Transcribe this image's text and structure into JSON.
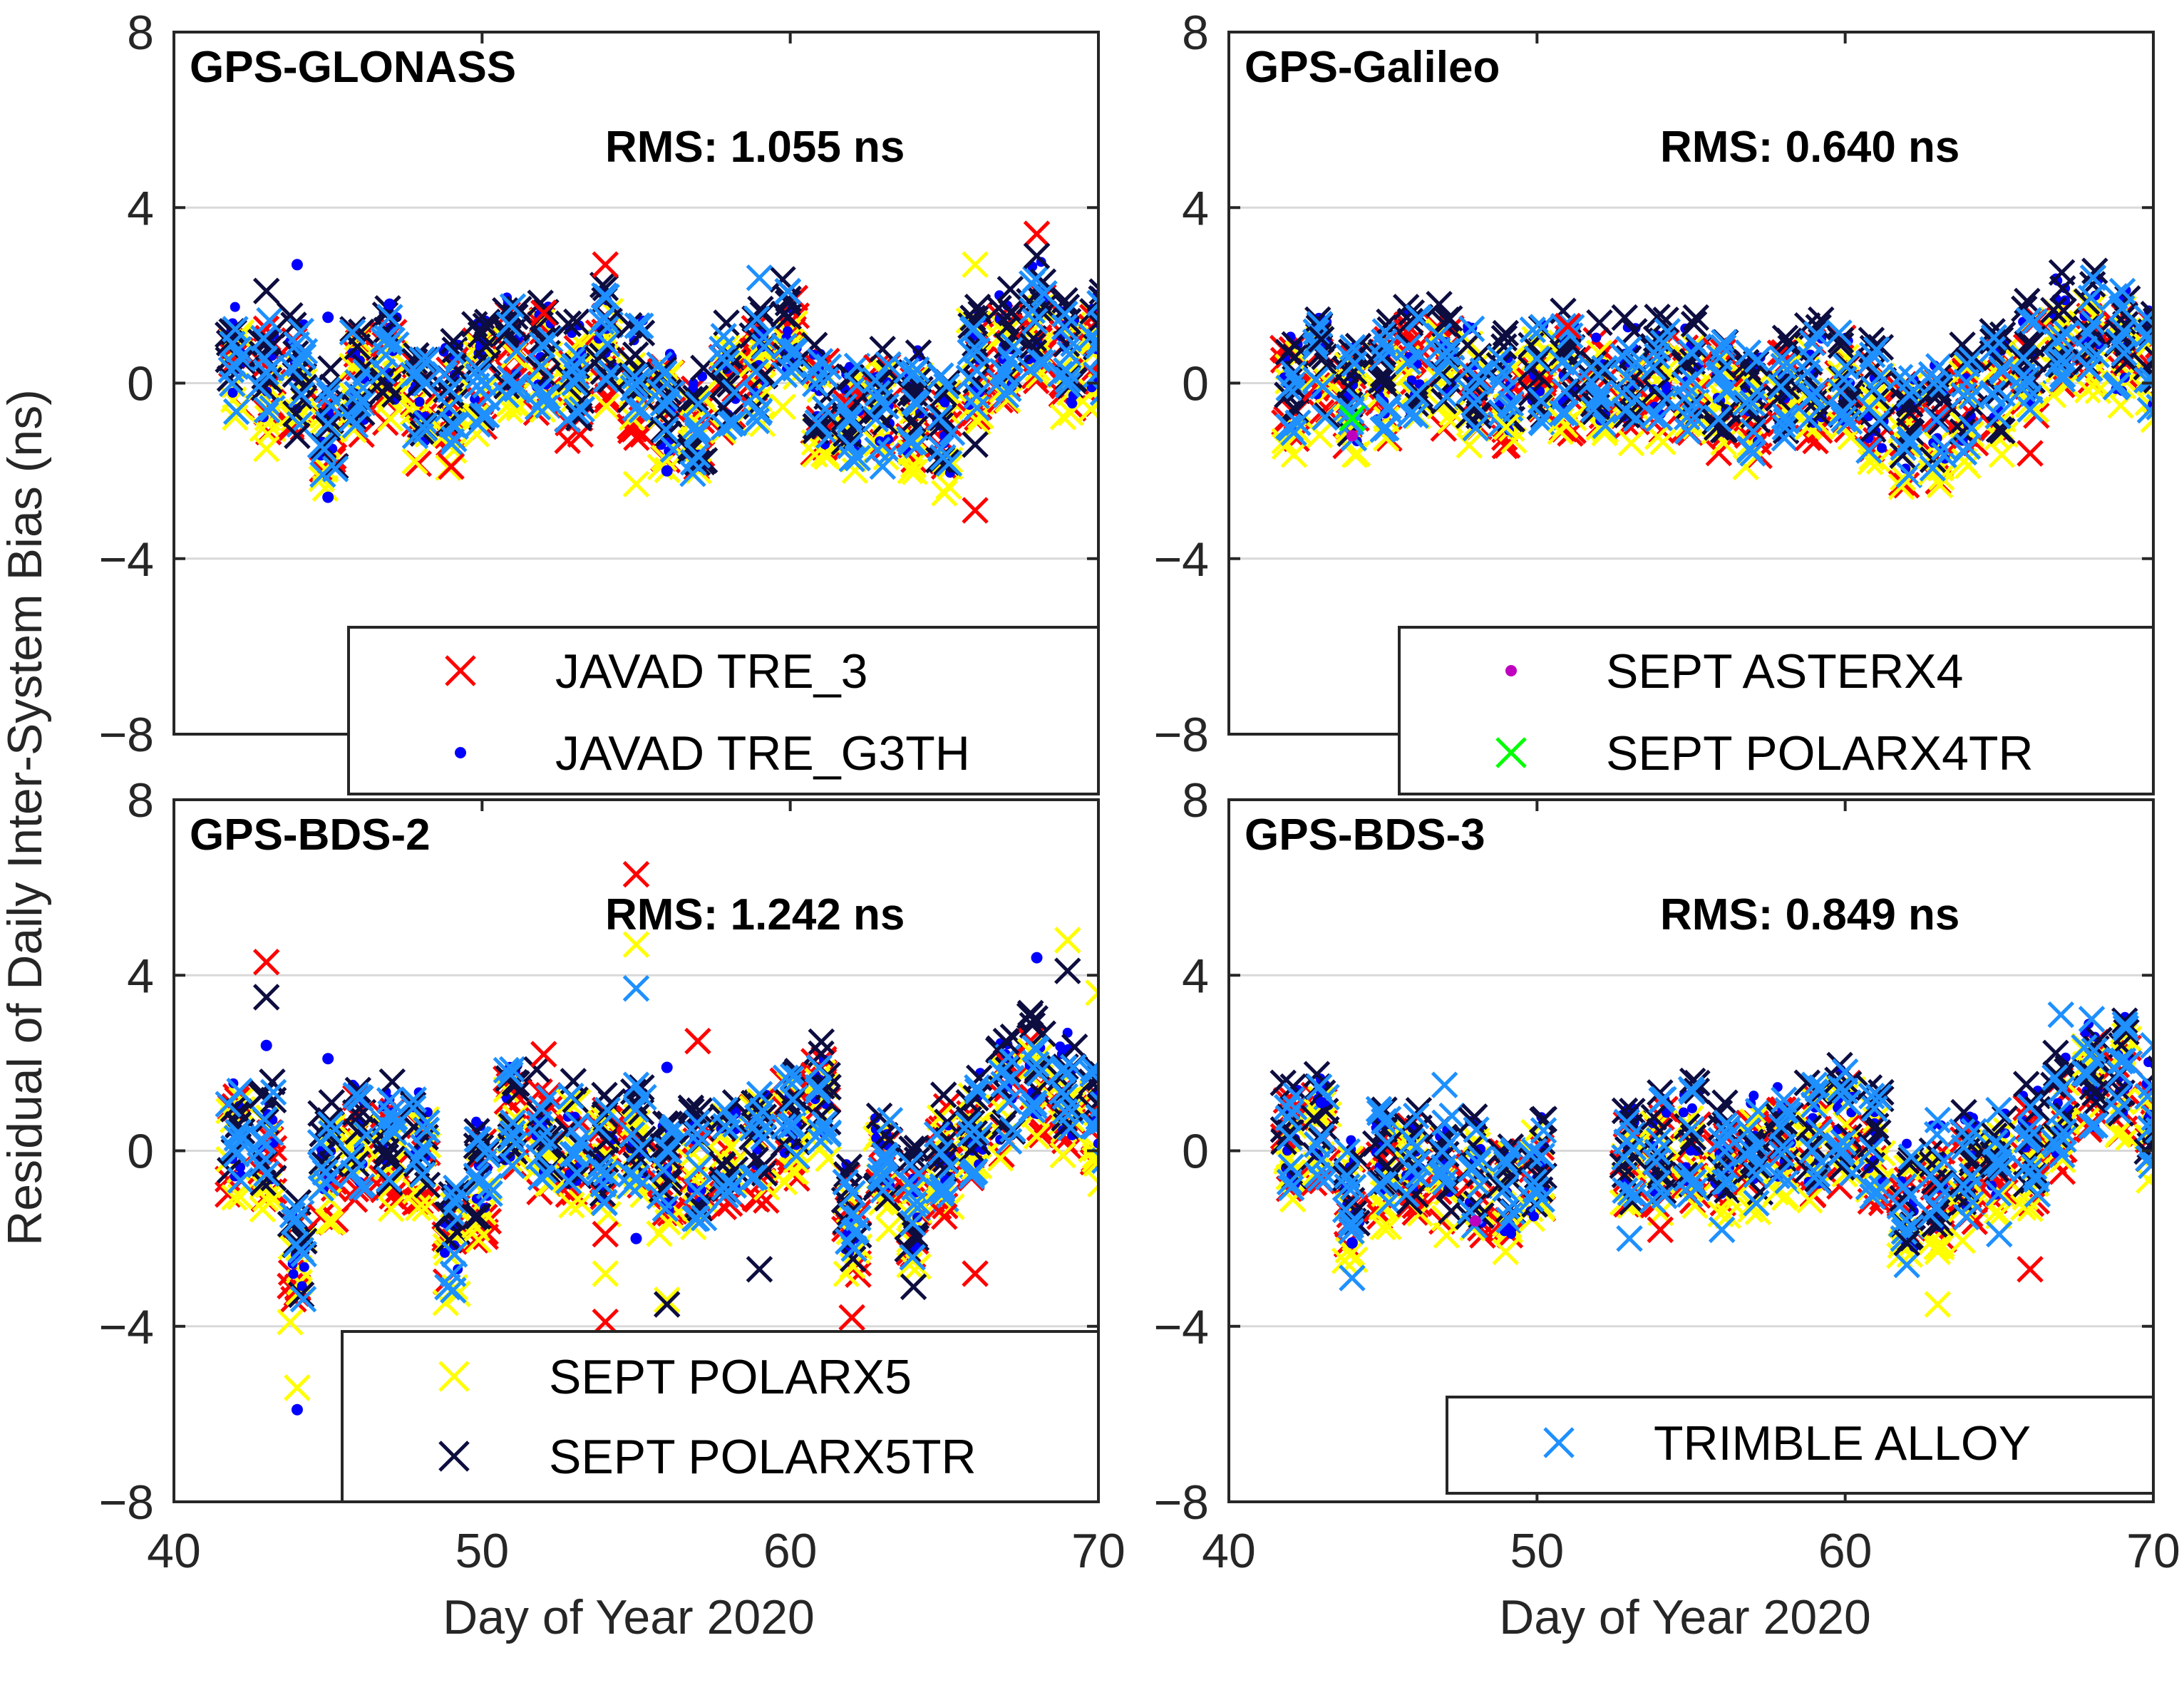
{
  "figure": {
    "ylabel": "Residual of Daily Inter-System Bias (ns)",
    "xlabel": "Day of Year 2020"
  },
  "colors": {
    "javad_tre3": "#ff0000",
    "javad_g3th": "#0000ff",
    "asterx4": "#bf00bf",
    "polarx4tr": "#00ff00",
    "polarx5": "#ffff00",
    "polarx5tr": "#0d0d40",
    "trimble_alloy": "#1e90ff",
    "grid": "#d9d9d9"
  },
  "chart_data": [
    {
      "type": "scatter",
      "title": "GPS-GLONASS",
      "rms": "RMS: 1.055 ns",
      "xlim": [
        40,
        70
      ],
      "ylim": [
        -8,
        8
      ],
      "xticks": [
        "40",
        "50",
        "60",
        "70"
      ],
      "yticks": [
        "8",
        "4",
        "0",
        "−4",
        "−8"
      ],
      "xtick_values": [
        40,
        50,
        60,
        70
      ],
      "ytick_values": [
        8,
        4,
        0,
        -4,
        -8
      ],
      "legend": [
        {
          "label": "JAVAD TRE_3",
          "marker": "x",
          "color": "#ff0000"
        },
        {
          "label": "JAVAD TRE_G3TH",
          "marker": "dot",
          "color": "#0000ff"
        }
      ],
      "days": [
        42,
        43,
        44,
        45,
        46,
        47,
        48,
        49,
        50,
        51,
        52,
        53,
        54,
        55,
        56,
        57,
        58,
        59,
        60,
        61,
        62,
        63,
        64,
        65,
        66,
        67,
        68,
        69,
        70
      ],
      "centers": [
        0.5,
        0.3,
        0.2,
        -1.0,
        0.2,
        0.4,
        -0.4,
        -0.4,
        0.2,
        0.9,
        0.6,
        0.1,
        1.0,
        0.2,
        -0.5,
        -0.9,
        0.0,
        0.3,
        1.0,
        -0.4,
        -0.6,
        -0.5,
        -0.5,
        -1.0,
        0.6,
        0.8,
        1.5,
        0.6,
        0.8
      ],
      "series": [
        {
          "name": "JAVAD TRE_3",
          "marker": "x",
          "color": "#ff0000",
          "outliers": [
            [
              66,
              -2.9
            ],
            [
              68,
              3.4
            ],
            [
              54,
              2.7
            ],
            [
              52,
              1.6
            ],
            [
              49,
              -1.9
            ]
          ]
        },
        {
          "name": "JAVAD TRE_G3TH",
          "marker": "dot",
          "color": "#0000ff",
          "outliers": [
            [
              44,
              2.7
            ],
            [
              45,
              -2.6
            ],
            [
              45,
              1.5
            ],
            [
              47,
              1.8
            ],
            [
              56,
              -2.0
            ]
          ]
        },
        {
          "name": "SEPT POLARX5",
          "marker": "x",
          "color": "#ffff00",
          "outliers": [
            [
              43,
              -1.5
            ],
            [
              66,
              2.7
            ],
            [
              55,
              -2.3
            ]
          ]
        },
        {
          "name": "SEPT POLARX5TR",
          "marker": "x",
          "color": "#0d0d40",
          "outliers": [
            [
              43,
              2.1
            ],
            [
              44,
              -1.2
            ],
            [
              66,
              -1.4
            ],
            [
              68,
              2.9
            ]
          ]
        },
        {
          "name": "TRIMBLE ALLOY",
          "marker": "x",
          "color": "#1e90ff",
          "outliers": [
            [
              59,
              2.4
            ],
            [
              63,
              -1.9
            ]
          ]
        }
      ]
    },
    {
      "type": "scatter",
      "title": "GPS-Galileo",
      "rms": "RMS: 0.640 ns",
      "xlim": [
        40,
        70
      ],
      "ylim": [
        -8,
        8
      ],
      "xticks": [
        "40",
        "50",
        "60",
        "70"
      ],
      "yticks": [
        "8",
        "4",
        "0",
        "−4",
        "−8"
      ],
      "xtick_values": [
        40,
        50,
        60,
        70
      ],
      "ytick_values": [
        8,
        4,
        0,
        -4,
        -8
      ],
      "legend": [
        {
          "label": "SEPT ASTERX4",
          "marker": "dot",
          "color": "#bf00bf"
        },
        {
          "label": "SEPT POLARX4TR",
          "marker": "x",
          "color": "#00ff00"
        }
      ],
      "days": [
        42,
        43,
        44,
        45,
        46,
        47,
        48,
        49,
        50,
        51,
        52,
        53,
        54,
        55,
        56,
        57,
        58,
        59,
        60,
        61,
        62,
        63,
        64,
        65,
        66,
        67,
        68,
        69,
        70
      ],
      "centers": [
        -0.1,
        0.2,
        -0.3,
        0.1,
        0.4,
        0.4,
        0.1,
        -0.2,
        0.2,
        0.3,
        0.1,
        0.1,
        0.2,
        0.1,
        -0.2,
        -0.5,
        -0.2,
        0.1,
        0.2,
        -0.4,
        -0.9,
        -0.8,
        -0.4,
        -0.1,
        0.6,
        1.2,
        1.3,
        0.9,
        0.5
      ],
      "series": [
        {
          "name": "SEPT ASTERX4",
          "marker": "dot",
          "color": "#bf00bf",
          "outliers": [
            [
              44,
              -1.2
            ]
          ]
        },
        {
          "name": "SEPT POLARX4TR",
          "marker": "x",
          "color": "#00ff00",
          "outliers": [
            [
              44,
              -0.8
            ]
          ]
        },
        {
          "name": "JAVAD TRE_3",
          "marker": "x",
          "color": "#ff0000",
          "outliers": [
            [
              66,
              -1.6
            ],
            [
              51,
              1.3
            ]
          ]
        },
        {
          "name": "SEPT POLARX5",
          "marker": "x",
          "color": "#ffff00",
          "outliers": [
            [
              49,
              -1.0
            ]
          ]
        },
        {
          "name": "SEPT POLARX5TR",
          "marker": "x",
          "color": "#0d0d40",
          "outliers": [
            [
              43,
              1.0
            ]
          ]
        },
        {
          "name": "TRIMBLE ALLOY",
          "marker": "x",
          "color": "#1e90ff",
          "outliers": [
            [
              55,
              0.7
            ],
            [
              57,
              -1.6
            ]
          ]
        }
      ]
    },
    {
      "type": "scatter",
      "title": "GPS-BDS-2",
      "rms": "RMS: 1.242 ns",
      "xlim": [
        40,
        70
      ],
      "ylim": [
        -8,
        8
      ],
      "xticks": [
        "40",
        "50",
        "60",
        "70"
      ],
      "yticks": [
        "8",
        "4",
        "0",
        "−4",
        "−8"
      ],
      "xtick_values": [
        40,
        50,
        60,
        70
      ],
      "ytick_values": [
        8,
        4,
        0,
        -4,
        -8
      ],
      "legend": [
        {
          "label": "SEPT POLARX5",
          "marker": "x",
          "color": "#ffff00"
        },
        {
          "label": "SEPT POLARX5TR",
          "marker": "x",
          "color": "#0d0d40"
        }
      ],
      "days": [
        42,
        43,
        44,
        45,
        46,
        47,
        48,
        49,
        50,
        51,
        52,
        53,
        54,
        55,
        56,
        57,
        58,
        59,
        60,
        61,
        62,
        63,
        64,
        65,
        66,
        67,
        68,
        69,
        70
      ],
      "centers": [
        0.4,
        0.2,
        -2.4,
        -0.2,
        0.3,
        0.2,
        0.2,
        -2.0,
        -0.6,
        0.7,
        0.5,
        0.3,
        0.0,
        0.2,
        -0.6,
        -0.4,
        0.1,
        0.3,
        0.8,
        1.3,
        -1.5,
        -0.3,
        -1.3,
        0.1,
        0.6,
        1.3,
        1.8,
        1.4,
        0.7
      ],
      "series": [
        {
          "name": "JAVAD TRE_3",
          "marker": "x",
          "color": "#ff0000",
          "outliers": [
            [
              43,
              4.3
            ],
            [
              55,
              6.3
            ],
            [
              57,
              2.5
            ],
            [
              52,
              2.2
            ],
            [
              54,
              -1.9
            ],
            [
              54,
              -3.9
            ],
            [
              62,
              -3.8
            ],
            [
              66,
              -2.8
            ],
            [
              65,
              -1.5
            ]
          ]
        },
        {
          "name": "JAVAD TRE_G3TH",
          "marker": "dot",
          "color": "#0000ff",
          "outliers": [
            [
              43,
              2.4
            ],
            [
              44,
              -5.9
            ],
            [
              45,
              2.1
            ],
            [
              55,
              -2.0
            ],
            [
              56,
              1.9
            ],
            [
              68,
              4.4
            ]
          ]
        },
        {
          "name": "SEPT POLARX5",
          "marker": "x",
          "color": "#ffff00",
          "outliers": [
            [
              44,
              -5.4
            ],
            [
              54,
              -2.8
            ],
            [
              55,
              4.7
            ],
            [
              56,
              -3.4
            ],
            [
              69,
              4.8
            ],
            [
              70,
              3.6
            ]
          ]
        },
        {
          "name": "SEPT POLARX5TR",
          "marker": "x",
          "color": "#0d0d40",
          "outliers": [
            [
              43,
              3.5
            ],
            [
              56,
              -3.5
            ],
            [
              59,
              -2.7
            ],
            [
              64,
              -3.1
            ],
            [
              69,
              4.1
            ],
            [
              67,
              2.5
            ]
          ]
        },
        {
          "name": "TRIMBLE ALLOY",
          "marker": "x",
          "color": "#1e90ff",
          "outliers": [
            [
              55,
              3.7
            ],
            [
              55,
              1.5
            ]
          ]
        }
      ]
    },
    {
      "type": "scatter",
      "title": "GPS-BDS-3",
      "rms": "RMS: 0.849 ns",
      "xlim": [
        40,
        70
      ],
      "ylim": [
        -8,
        8
      ],
      "xticks": [
        "40",
        "50",
        "60",
        "70"
      ],
      "yticks": [
        "8",
        "4",
        "0",
        "−4",
        "−8"
      ],
      "xtick_values": [
        40,
        50,
        60,
        70
      ],
      "ytick_values": [
        8,
        4,
        0,
        -4,
        -8
      ],
      "legend": [
        {
          "label": "TRIMBLE ALLOY",
          "marker": "x",
          "color": "#1e90ff"
        }
      ],
      "days": [
        42,
        43,
        44,
        45,
        46,
        47,
        48,
        49,
        50,
        53,
        54,
        55,
        56,
        57,
        58,
        59,
        60,
        61,
        62,
        63,
        64,
        65,
        66,
        67,
        68,
        69,
        70
      ],
      "centers": [
        0.3,
        0.4,
        -1.0,
        -0.2,
        -0.3,
        -0.4,
        -0.6,
        -0.8,
        -0.4,
        -0.3,
        0.0,
        0.2,
        0.0,
        0.0,
        0.2,
        0.3,
        0.6,
        0.1,
        -1.1,
        -0.7,
        -0.5,
        -0.2,
        0.2,
        0.9,
        1.6,
        1.8,
        0.8
      ],
      "series": [
        {
          "name": "TRIMBLE ALLOY",
          "marker": "x",
          "color": "#1e90ff",
          "outliers": [
            [
              44,
              -2.9
            ],
            [
              47,
              1.5
            ],
            [
              53,
              -2.0
            ],
            [
              55,
              1.4
            ],
            [
              56,
              -1.8
            ],
            [
              59,
              1.5
            ],
            [
              60,
              1.8
            ],
            [
              62,
              -2.6
            ],
            [
              63,
              0.7
            ],
            [
              65,
              -1.9
            ],
            [
              67,
              3.1
            ],
            [
              68,
              3.0
            ],
            [
              70,
              2.4
            ],
            [
              66,
              1.0
            ]
          ]
        },
        {
          "name": "JAVAD TRE_3",
          "marker": "x",
          "color": "#ff0000",
          "outliers": [
            [
              66,
              -2.7
            ],
            [
              54,
              -1.8
            ]
          ]
        },
        {
          "name": "JAVAD TRE_G3TH",
          "marker": "dot",
          "color": "#0000ff",
          "outliers": [
            [
              44,
              -2.1
            ],
            [
              43,
              1.1
            ]
          ]
        },
        {
          "name": "SEPT ASTERX4",
          "marker": "dot",
          "color": "#bf00bf",
          "outliers": [
            [
              48,
              -1.6
            ]
          ]
        },
        {
          "name": "SEPT POLARX5",
          "marker": "x",
          "color": "#ffff00",
          "outliers": [
            [
              63,
              -3.5
            ],
            [
              63,
              -2.3
            ]
          ]
        },
        {
          "name": "SEPT POLARX5TR",
          "marker": "x",
          "color": "#0d0d40",
          "outliers": [
            [
              62,
              -2.1
            ]
          ]
        }
      ]
    }
  ]
}
